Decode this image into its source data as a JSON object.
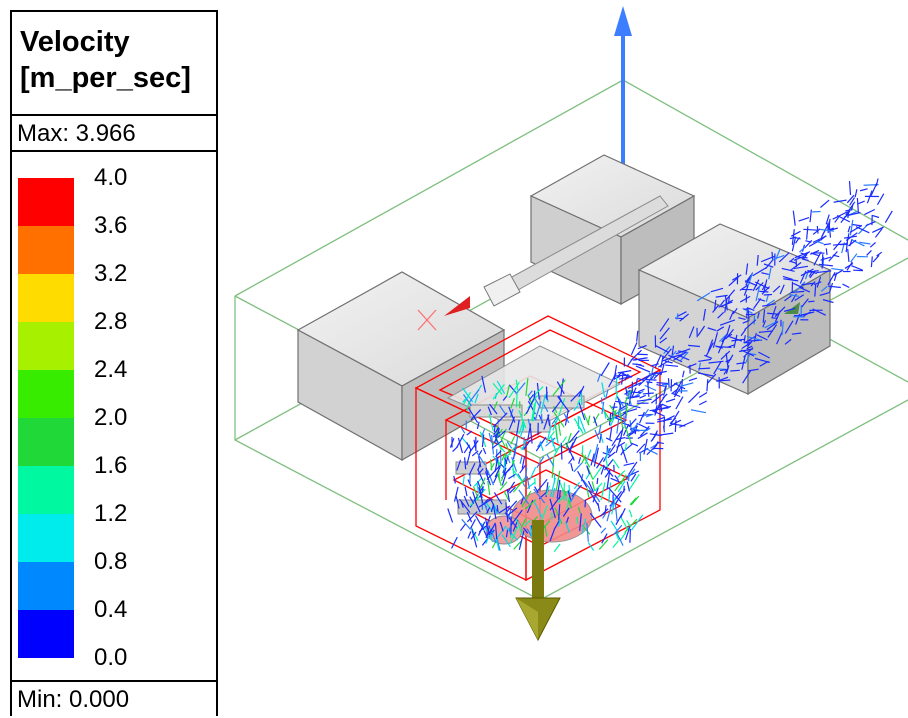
{
  "legend": {
    "title_line1": "Velocity",
    "title_line2": "[m_per_sec]",
    "max_label": "Max: 3.966",
    "min_label": "Min: 0.000",
    "ticks": [
      "4.0",
      "3.6",
      "3.2",
      "2.8",
      "2.4",
      "2.0",
      "1.6",
      "1.2",
      "0.8",
      "0.4",
      "0.0"
    ],
    "colors_top_to_bottom": [
      "#fe0000",
      "#ff7000",
      "#ffdc00",
      "#a6f000",
      "#38ec00",
      "#20d838",
      "#00f8a0",
      "#00ecec",
      "#0088ff",
      "#0000ff"
    ]
  },
  "viewport": {
    "axis_colors": {
      "z_axis": "#3d7dff",
      "x_axis_marker": "#e02020",
      "y_axis_arrow": "#808000",
      "domain_box": "#7fbf7f",
      "selection": "#ff0000",
      "vectors": "#1a2cff"
    },
    "icons": [
      "z-axis-arrow-icon",
      "down-arrow-icon",
      "x-axis-cone-icon"
    ]
  }
}
